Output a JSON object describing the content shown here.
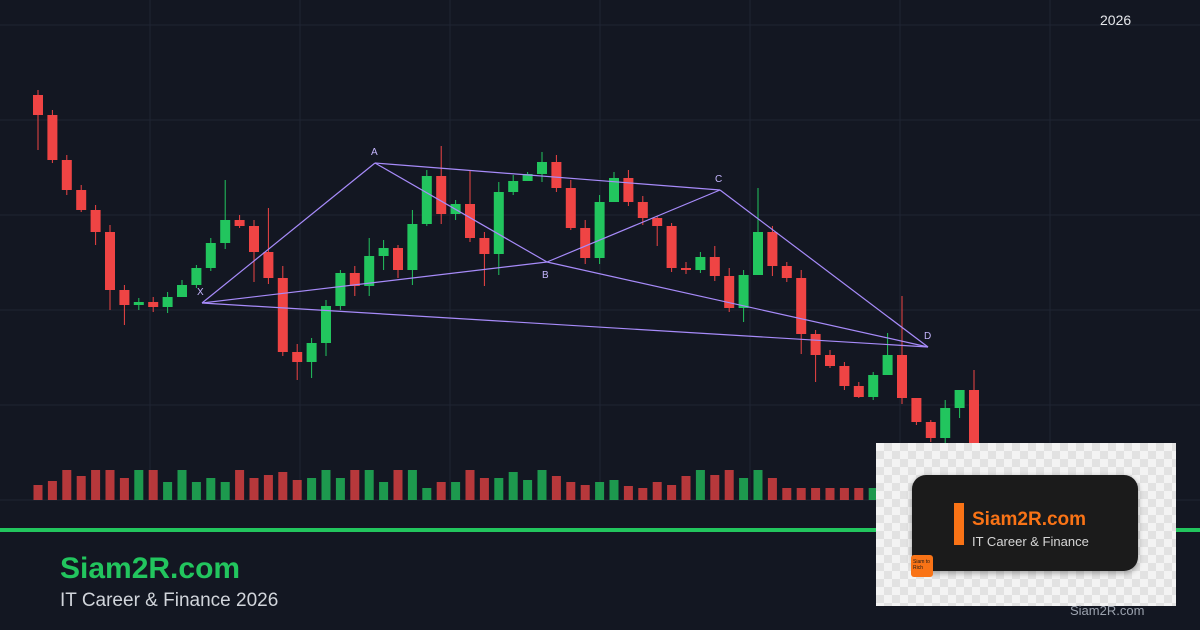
{
  "header": {
    "year": "2026"
  },
  "footer": {
    "brand": "Siam2R.com",
    "tagline": "IT Career & Finance 2026"
  },
  "logo": {
    "title": "Siam2R.com",
    "subtitle": "IT Career & Finance",
    "badge": "Siam to Rich",
    "watermark": "Siam2R.com"
  },
  "colors": {
    "background": "#131722",
    "up": "#22c55e",
    "down": "#ef4444",
    "pattern": "#a78bfa",
    "accent": "#22c55e",
    "logo_accent": "#f97316"
  },
  "chart_data": {
    "type": "candlestick",
    "candles": [
      [
        95,
        115,
        150,
        90
      ],
      [
        115,
        160,
        163,
        110
      ],
      [
        160,
        190,
        195,
        155
      ],
      [
        190,
        210,
        212,
        185
      ],
      [
        210,
        232,
        245,
        205
      ],
      [
        232,
        290,
        310,
        225
      ],
      [
        290,
        305,
        325,
        285
      ],
      [
        305,
        302,
        310,
        298
      ],
      [
        302,
        307,
        312,
        297
      ],
      [
        307,
        297,
        313,
        292
      ],
      [
        297,
        285,
        290,
        280
      ],
      [
        285,
        268,
        288,
        265
      ],
      [
        268,
        243,
        271,
        238
      ],
      [
        243,
        220,
        249,
        180
      ],
      [
        220,
        226,
        228,
        215
      ],
      [
        226,
        252,
        282,
        220
      ],
      [
        252,
        278,
        284,
        208
      ],
      [
        278,
        352,
        356,
        266
      ],
      [
        352,
        362,
        380,
        344
      ],
      [
        362,
        343,
        378,
        338
      ],
      [
        343,
        306,
        356,
        300
      ],
      [
        306,
        273,
        310,
        270
      ],
      [
        273,
        286,
        296,
        266
      ],
      [
        286,
        256,
        296,
        238
      ],
      [
        256,
        248,
        270,
        240
      ],
      [
        248,
        270,
        278,
        245
      ],
      [
        270,
        224,
        285,
        210
      ],
      [
        224,
        176,
        226,
        170
      ],
      [
        176,
        214,
        224,
        146
      ],
      [
        214,
        204,
        220,
        200
      ],
      [
        204,
        238,
        242,
        170
      ],
      [
        238,
        254,
        286,
        232
      ],
      [
        254,
        192,
        275,
        182
      ],
      [
        192,
        181,
        195,
        175
      ],
      [
        181,
        174,
        179,
        172
      ],
      [
        174,
        162,
        182,
        152
      ],
      [
        162,
        188,
        192,
        155
      ],
      [
        188,
        228,
        230,
        180
      ],
      [
        228,
        258,
        264,
        220
      ],
      [
        258,
        202,
        264,
        195
      ],
      [
        202,
        178,
        176,
        172
      ],
      [
        178,
        202,
        206,
        170
      ],
      [
        202,
        218,
        225,
        196
      ],
      [
        218,
        226,
        246,
        216
      ],
      [
        226,
        268,
        272,
        223
      ],
      [
        268,
        270,
        274,
        262
      ],
      [
        270,
        257,
        273,
        252
      ],
      [
        257,
        276,
        281,
        246
      ],
      [
        276,
        308,
        312,
        268
      ],
      [
        308,
        275,
        322,
        270
      ],
      [
        275,
        232,
        275,
        188
      ],
      [
        232,
        266,
        276,
        226
      ],
      [
        266,
        278,
        282,
        262
      ],
      [
        278,
        334,
        354,
        270
      ],
      [
        334,
        355,
        382,
        330
      ],
      [
        355,
        366,
        368,
        350
      ],
      [
        366,
        386,
        390,
        362
      ],
      [
        386,
        397,
        398,
        382
      ],
      [
        397,
        375,
        400,
        372
      ],
      [
        375,
        355,
        366,
        333
      ],
      [
        355,
        398,
        404,
        296
      ],
      [
        398,
        422,
        425,
        405
      ],
      [
        422,
        438,
        442,
        420
      ],
      [
        438,
        408,
        443,
        400
      ],
      [
        408,
        390,
        418,
        392
      ],
      [
        390,
        448,
        455,
        370
      ]
    ],
    "volumes": [
      15,
      19,
      30,
      24,
      30,
      30,
      22,
      30,
      30,
      18,
      30,
      18,
      22,
      18,
      30,
      22,
      25,
      28,
      20,
      22,
      30,
      22,
      30,
      30,
      18,
      30,
      30,
      12,
      18,
      18,
      30,
      22,
      22,
      28,
      20,
      30,
      24,
      18,
      15,
      18,
      20,
      14,
      12,
      18,
      15,
      24,
      30,
      25,
      30,
      22,
      30,
      22,
      12,
      12,
      12,
      12,
      12,
      12,
      12,
      12,
      12,
      12,
      12,
      12,
      12,
      12
    ],
    "xabcd": {
      "labels": [
        "X",
        "A",
        "B",
        "C",
        "D"
      ],
      "values": [
        303,
        163,
        262,
        190,
        347
      ]
    }
  }
}
